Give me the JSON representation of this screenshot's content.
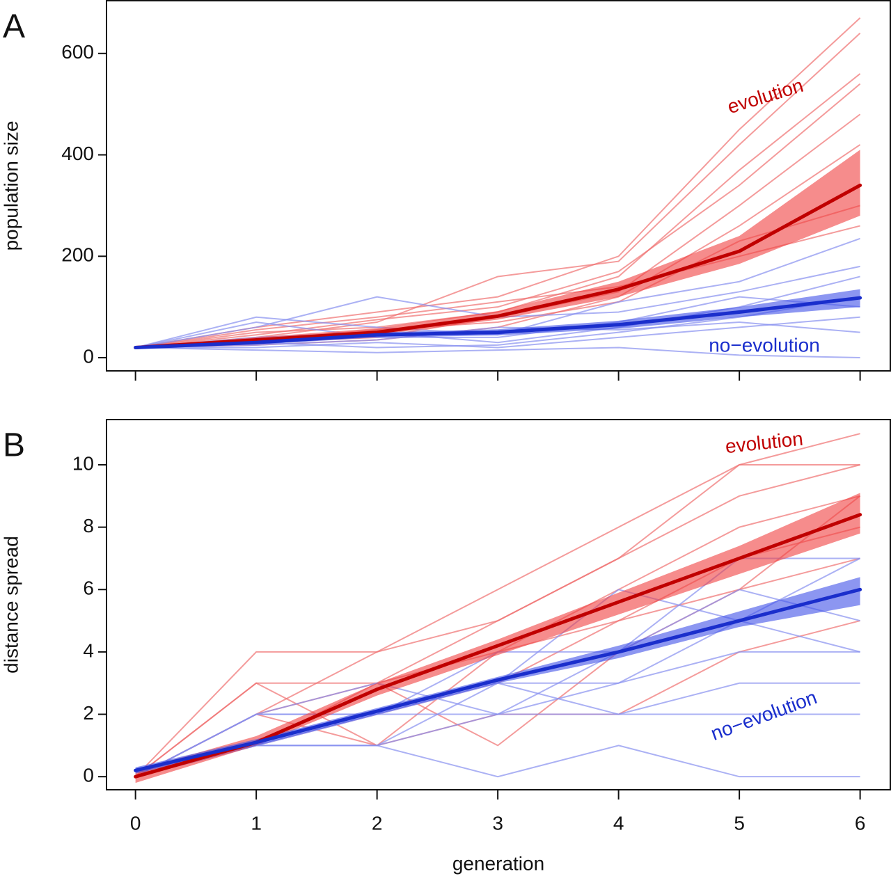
{
  "chart_data": [
    {
      "type": "line",
      "panel_label": "A",
      "ylabel": "population size",
      "x": [
        0,
        1,
        2,
        3,
        4,
        5,
        6
      ],
      "xlim": [
        -0.24,
        6.25
      ],
      "xticks": [
        0,
        1,
        2,
        3,
        4,
        5,
        6
      ],
      "show_xtick_labels": false,
      "ylim": [
        -26,
        704
      ],
      "yticks": [
        0,
        200,
        400,
        600
      ],
      "series": [
        {
          "name": "evolution",
          "color": "#c00000",
          "band_color": "#f04040",
          "replicate_color": "#f07070",
          "values": [
            20,
            35,
            50,
            82,
            135,
            210,
            340
          ],
          "band_lower": [
            18,
            30,
            45,
            75,
            120,
            185,
            280
          ],
          "band_upper": [
            22,
            40,
            58,
            92,
            150,
            240,
            410
          ],
          "replicates": [
            [
              20,
              60,
              90,
              120,
              200,
              450,
              670
            ],
            [
              20,
              40,
              70,
              160,
              190,
              420,
              640
            ],
            [
              20,
              50,
              60,
              90,
              160,
              370,
              560
            ],
            [
              20,
              30,
              40,
              80,
              130,
              300,
              480
            ],
            [
              20,
              45,
              75,
              100,
              170,
              340,
              540
            ],
            [
              20,
              25,
              35,
              60,
              120,
              260,
              420
            ],
            [
              20,
              35,
              55,
              70,
              110,
              230,
              300
            ],
            [
              20,
              55,
              80,
              110,
              140,
              200,
              260
            ]
          ]
        },
        {
          "name": "no−evolution",
          "color": "#1a2ecc",
          "band_color": "#4050e8",
          "replicate_color": "#8890f0",
          "values": [
            20,
            30,
            45,
            50,
            65,
            90,
            118
          ],
          "band_lower": [
            18,
            26,
            40,
            44,
            57,
            80,
            100
          ],
          "band_upper": [
            22,
            34,
            50,
            56,
            73,
            100,
            135
          ],
          "replicates": [
            [
              20,
              80,
              60,
              45,
              110,
              150,
              235
            ],
            [
              20,
              60,
              120,
              80,
              90,
              130,
              180
            ],
            [
              20,
              40,
              50,
              30,
              60,
              100,
              160
            ],
            [
              20,
              30,
              20,
              25,
              50,
              80,
              120
            ],
            [
              20,
              20,
              30,
              20,
              40,
              60,
              80
            ],
            [
              20,
              15,
              10,
              15,
              20,
              5,
              0
            ],
            [
              20,
              70,
              40,
              40,
              70,
              120,
              100
            ],
            [
              20,
              25,
              35,
              60,
              55,
              70,
              50
            ]
          ]
        }
      ]
    },
    {
      "type": "line",
      "panel_label": "B",
      "ylabel": "distance spread",
      "xlabel": "generation",
      "x": [
        0,
        1,
        2,
        3,
        4,
        5,
        6
      ],
      "xlim": [
        -0.24,
        6.25
      ],
      "xticks": [
        0,
        1,
        2,
        3,
        4,
        5,
        6
      ],
      "show_xtick_labels": true,
      "ylim": [
        -0.42,
        11.45
      ],
      "yticks": [
        0,
        2,
        4,
        6,
        8,
        10
      ],
      "series": [
        {
          "name": "evolution",
          "color": "#c00000",
          "band_color": "#f04040",
          "replicate_color": "#f07070",
          "values": [
            0,
            1.1,
            2.8,
            4.2,
            5.6,
            7,
            8.4
          ],
          "band_lower": [
            -0.2,
            1,
            2.6,
            3.9,
            5.2,
            6.5,
            7.8
          ],
          "band_upper": [
            0.2,
            1.3,
            3,
            4.4,
            5.9,
            7.4,
            9.1
          ],
          "replicates": [
            [
              0,
              4,
              4,
              6,
              8,
              10,
              11
            ],
            [
              0,
              2,
              3,
              5,
              7,
              9,
              10
            ],
            [
              0,
              3,
              3,
              4,
              6,
              8,
              9
            ],
            [
              0,
              2,
              1,
              4,
              5,
              7,
              8
            ],
            [
              0,
              1,
              2,
              3,
              5,
              6,
              7
            ],
            [
              0,
              3,
              1,
              2,
              2,
              4,
              5
            ],
            [
              0,
              2,
              4,
              5,
              7,
              10,
              10
            ],
            [
              0,
              1,
              3,
              1,
              4,
              6,
              9
            ]
          ]
        },
        {
          "name": "no−evolution",
          "color": "#1a2ecc",
          "band_color": "#4050e8",
          "replicate_color": "#8890f0",
          "values": [
            0.2,
            1.1,
            2.1,
            3.1,
            4,
            5,
            6
          ],
          "band_lower": [
            0.1,
            1,
            2,
            3,
            3.8,
            4.8,
            5.5
          ],
          "band_upper": [
            0.3,
            1.2,
            2.2,
            3.2,
            4.2,
            5.3,
            6.4
          ],
          "replicates": [
            [
              0,
              2,
              2,
              2,
              4,
              7,
              7
            ],
            [
              0,
              1,
              1,
              0,
              1,
              0,
              0
            ],
            [
              0,
              2,
              2,
              3,
              3,
              4,
              4
            ],
            [
              0,
              1,
              2,
              4,
              4,
              6,
              5
            ],
            [
              0,
              1,
              1,
              2,
              3,
              5,
              7
            ],
            [
              0,
              2,
              3,
              2,
              2,
              3,
              3
            ],
            [
              0,
              1,
              2,
              3,
              6,
              5,
              4
            ],
            [
              0,
              1,
              1,
              3,
              2,
              2,
              2
            ]
          ]
        }
      ]
    }
  ]
}
